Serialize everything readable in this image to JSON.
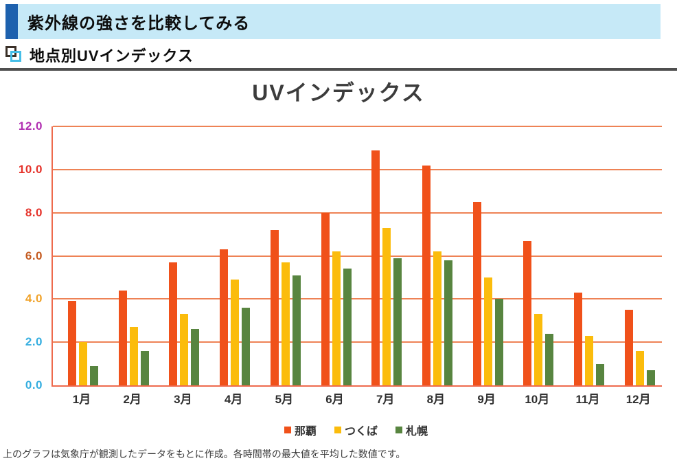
{
  "header": {
    "title": "紫外線の強さを比較してみる",
    "band_color": "#c6e9f7",
    "accent_color": "#1d61ae"
  },
  "section": {
    "heading": "地点別UVインデックス"
  },
  "footer": {
    "note": "上のグラフは気象庁が観測したデータをもとに作成。各時間帯の最大値を平均した数値です。"
  },
  "chart_data": {
    "type": "bar",
    "title": "UVインデックス",
    "categories": [
      "1月",
      "2月",
      "3月",
      "4月",
      "5月",
      "6月",
      "7月",
      "8月",
      "9月",
      "10月",
      "11月",
      "12月"
    ],
    "series": [
      {
        "name": "那覇",
        "color": "#f0511a",
        "values": [
          3.9,
          4.4,
          5.7,
          6.3,
          7.2,
          8.0,
          10.9,
          10.2,
          8.5,
          6.7,
          4.3,
          3.5
        ]
      },
      {
        "name": "つくば",
        "color": "#fbbc0c",
        "values": [
          2.0,
          2.7,
          3.3,
          4.9,
          5.7,
          6.2,
          7.3,
          6.2,
          5.0,
          3.3,
          2.3,
          1.6
        ]
      },
      {
        "name": "札幌",
        "color": "#588540",
        "values": [
          0.9,
          1.6,
          2.6,
          3.6,
          5.1,
          5.4,
          5.9,
          5.8,
          4.0,
          2.4,
          1.0,
          0.7
        ]
      }
    ],
    "ylim": [
      0,
      12
    ],
    "y_ticks": [
      {
        "label": "0.0",
        "value": 0,
        "color": "#35aee0"
      },
      {
        "label": "2.0",
        "value": 2,
        "color": "#35aee0"
      },
      {
        "label": "4.0",
        "value": 4,
        "color": "#f0a229"
      },
      {
        "label": "6.0",
        "value": 6,
        "color": "#c45a1f"
      },
      {
        "label": "8.0",
        "value": 8,
        "color": "#e5322a"
      },
      {
        "label": "10.0",
        "value": 10,
        "color": "#e5322a"
      },
      {
        "label": "12.0",
        "value": 12,
        "color": "#b12fb1"
      }
    ],
    "grid": true,
    "gridline_color": "#ee8255",
    "axis_color": "#ee6a4d",
    "legend_position": "bottom",
    "xlabel": "",
    "ylabel": ""
  }
}
